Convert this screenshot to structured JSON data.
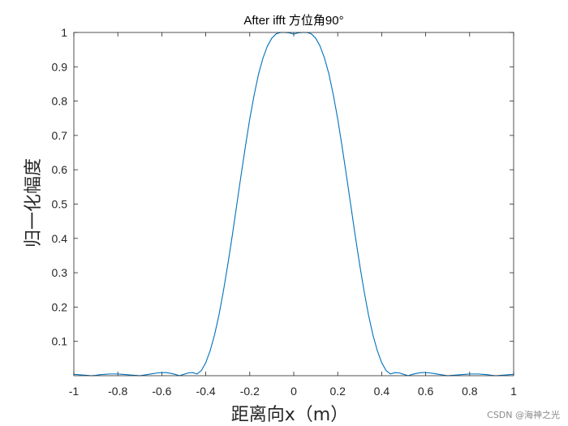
{
  "chart_data": {
    "type": "line",
    "title": "After ifft 方位角90°",
    "xlabel": "距离向x（m）",
    "ylabel": "归一化幅度",
    "xlim": [
      -1,
      1
    ],
    "ylim": [
      0,
      1
    ],
    "xticks": [
      -1,
      -0.8,
      -0.6,
      -0.4,
      -0.2,
      0,
      0.2,
      0.4,
      0.6,
      0.8,
      1
    ],
    "xtick_labels": [
      "-1",
      "-0.8",
      "-0.6",
      "-0.4",
      "-0.2",
      "0",
      "0.2",
      "0.4",
      "0.6",
      "0.8",
      "1"
    ],
    "yticks": [
      0.1,
      0.2,
      0.3,
      0.4,
      0.5,
      0.6,
      0.7,
      0.8,
      0.9,
      1
    ],
    "ytick_labels": [
      "0.1",
      "0.2",
      "0.3",
      "0.4",
      "0.5",
      "0.6",
      "0.7",
      "0.8",
      "0.9",
      "1"
    ],
    "grid": false,
    "series": [
      {
        "color": "#0072BD",
        "x": [
          -1,
          -0.98,
          -0.96,
          -0.94,
          -0.92,
          -0.9,
          -0.88,
          -0.86,
          -0.84,
          -0.82,
          -0.8,
          -0.78,
          -0.76,
          -0.74,
          -0.72,
          -0.7,
          -0.68,
          -0.66,
          -0.64,
          -0.62,
          -0.6,
          -0.58,
          -0.56,
          -0.54,
          -0.52,
          -0.5,
          -0.48,
          -0.46,
          -0.44,
          -0.42,
          -0.4,
          -0.38,
          -0.36,
          -0.34,
          -0.32,
          -0.3,
          -0.28,
          -0.26,
          -0.24,
          -0.22,
          -0.2,
          -0.18,
          -0.16,
          -0.14,
          -0.12,
          -0.1,
          -0.08,
          -0.06,
          -0.04,
          -0.02,
          0,
          0.02,
          0.04,
          0.06,
          0.08,
          0.1,
          0.12,
          0.14,
          0.16,
          0.18,
          0.2,
          0.22,
          0.24,
          0.26,
          0.28,
          0.3,
          0.32,
          0.34,
          0.36,
          0.38,
          0.4,
          0.42,
          0.44,
          0.46,
          0.48,
          0.5,
          0.52,
          0.54,
          0.56,
          0.58,
          0.6,
          0.62,
          0.64,
          0.66,
          0.68,
          0.7,
          0.72,
          0.74,
          0.76,
          0.78,
          0.8,
          0.82,
          0.84,
          0.86,
          0.88,
          0.9,
          0.92,
          0.94,
          0.96,
          0.98,
          1
        ],
        "y": [
          0.004,
          0.003,
          0.002,
          0.001,
          0.0,
          0.001,
          0.003,
          0.004,
          0.005,
          0.005,
          0.005,
          0.004,
          0.003,
          0.002,
          0.001,
          0.0,
          0.002,
          0.004,
          0.006,
          0.008,
          0.009,
          0.009,
          0.007,
          0.004,
          0.0,
          0.004,
          0.008,
          0.009,
          0.005,
          0.015,
          0.038,
          0.073,
          0.119,
          0.177,
          0.246,
          0.323,
          0.406,
          0.494,
          0.582,
          0.667,
          0.748,
          0.818,
          0.879,
          0.925,
          0.96,
          0.983,
          0.996,
          1.0,
          1.0,
          0.999,
          0.995,
          0.999,
          1.0,
          1.0,
          0.996,
          0.983,
          0.96,
          0.925,
          0.879,
          0.818,
          0.748,
          0.667,
          0.582,
          0.494,
          0.406,
          0.323,
          0.246,
          0.177,
          0.119,
          0.073,
          0.038,
          0.015,
          0.005,
          0.009,
          0.008,
          0.004,
          0.0,
          0.004,
          0.007,
          0.009,
          0.009,
          0.008,
          0.006,
          0.004,
          0.002,
          0.0,
          0.001,
          0.002,
          0.003,
          0.004,
          0.005,
          0.005,
          0.005,
          0.004,
          0.003,
          0.001,
          0.0,
          0.001,
          0.002,
          0.003,
          0.004
        ]
      }
    ]
  },
  "watermark": "CSDN @海神之光"
}
